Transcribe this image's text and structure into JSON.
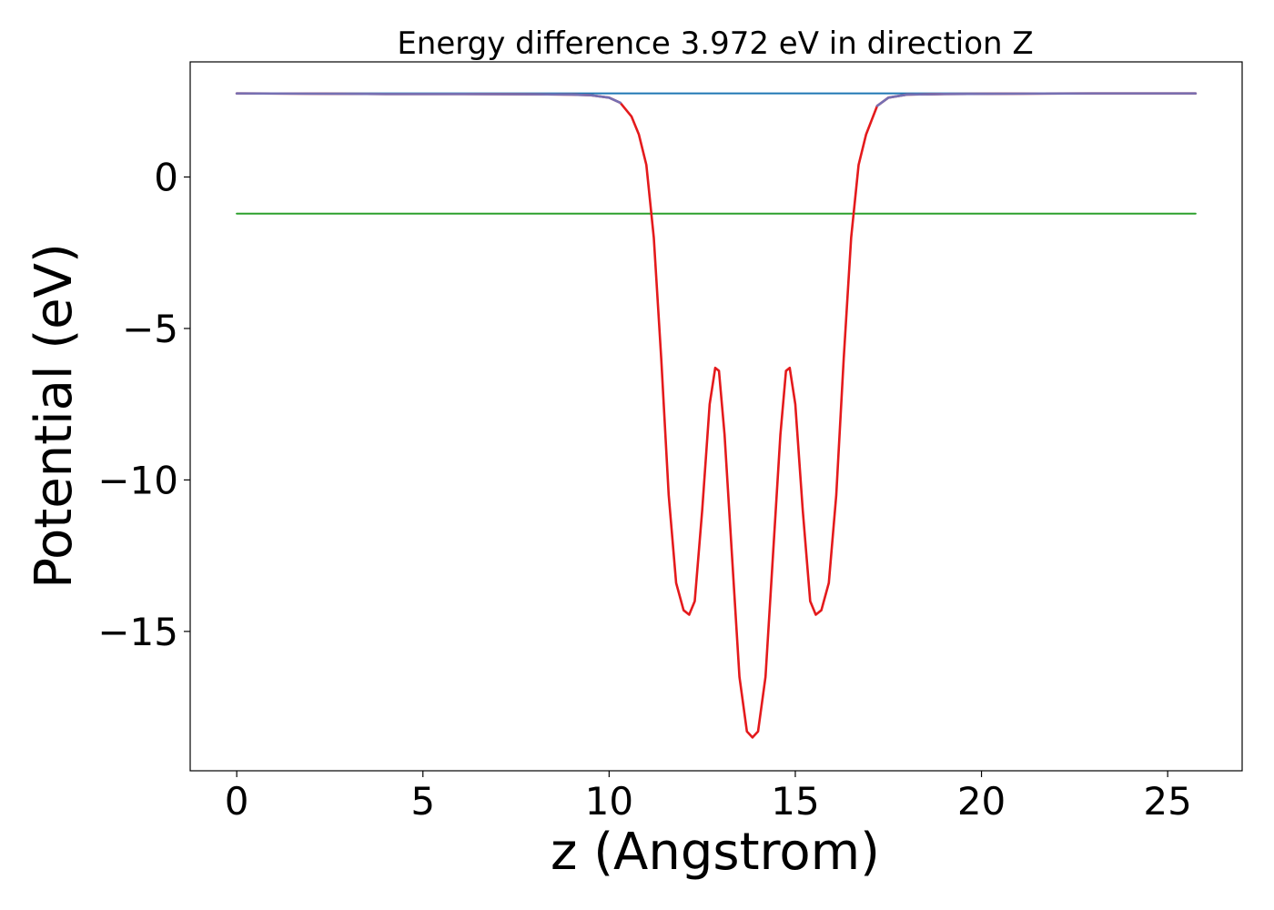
{
  "chart_data": {
    "type": "line",
    "title": "Energy difference 3.972 eV in direction Z",
    "xlabel": "z (Angstrom)",
    "ylabel": "Potential (eV)",
    "xlim": [
      -1.25,
      27.0
    ],
    "ylim": [
      -19.6,
      3.8
    ],
    "xticks": [
      0,
      5,
      10,
      15,
      20,
      25
    ],
    "xtick_labels": [
      "0",
      "5",
      "10",
      "15",
      "20",
      "25"
    ],
    "yticks": [
      0,
      -5,
      -10,
      -15
    ],
    "ytick_labels": [
      "0",
      "−5",
      "−10",
      "−15"
    ],
    "grid": false,
    "legend": false,
    "series": [
      {
        "style": "horizontal-line",
        "color": "#1f77b4",
        "x": [
          0,
          25.75
        ],
        "y": [
          2.76,
          2.76
        ]
      },
      {
        "style": "horizontal-line",
        "color": "#2ca02c",
        "x": [
          0,
          25.75
        ],
        "y": [
          -1.21,
          -1.21
        ]
      },
      {
        "style": "curve",
        "color": "#e41a1c",
        "x": [
          0,
          2,
          4,
          6,
          8,
          9,
          9.5,
          10,
          10.3,
          10.6,
          10.8,
          11.0,
          11.2,
          11.4,
          11.6,
          11.8,
          12.0,
          12.15,
          12.3,
          12.5,
          12.7,
          12.85,
          12.95,
          13.1,
          13.3,
          13.5,
          13.7,
          13.85,
          14.0,
          14.2,
          14.4,
          14.6,
          14.75,
          14.85,
          15.0,
          15.2,
          15.4,
          15.55,
          15.7,
          15.9,
          16.1,
          16.3,
          16.5,
          16.7,
          16.9,
          17.2,
          17.5,
          18,
          19,
          21,
          23,
          25.75
        ],
        "y": [
          2.76,
          2.75,
          2.74,
          2.74,
          2.73,
          2.72,
          2.7,
          2.62,
          2.45,
          2.0,
          1.4,
          0.4,
          -2.0,
          -6.0,
          -10.5,
          -13.4,
          -14.3,
          -14.45,
          -14.0,
          -11.0,
          -7.5,
          -6.3,
          -6.4,
          -8.5,
          -12.5,
          -16.5,
          -18.3,
          -18.5,
          -18.3,
          -16.5,
          -12.5,
          -8.5,
          -6.4,
          -6.3,
          -7.5,
          -11.0,
          -14.0,
          -14.45,
          -14.3,
          -13.4,
          -10.5,
          -6.0,
          -2.0,
          0.4,
          1.4,
          2.35,
          2.62,
          2.72,
          2.74,
          2.75,
          2.76,
          2.76
        ]
      },
      {
        "style": "curve",
        "color": "#7570b3",
        "x": [
          0,
          2,
          4,
          6,
          8,
          9,
          9.5,
          10,
          10.3,
          17.2,
          17.5,
          18,
          19,
          21,
          23,
          25.75
        ],
        "y": [
          2.76,
          2.75,
          2.74,
          2.74,
          2.73,
          2.72,
          2.7,
          2.62,
          2.45,
          2.35,
          2.62,
          2.72,
          2.74,
          2.75,
          2.76,
          2.76
        ],
        "segments": [
          [
            0,
            8
          ],
          [
            9,
            15
          ]
        ]
      }
    ]
  }
}
